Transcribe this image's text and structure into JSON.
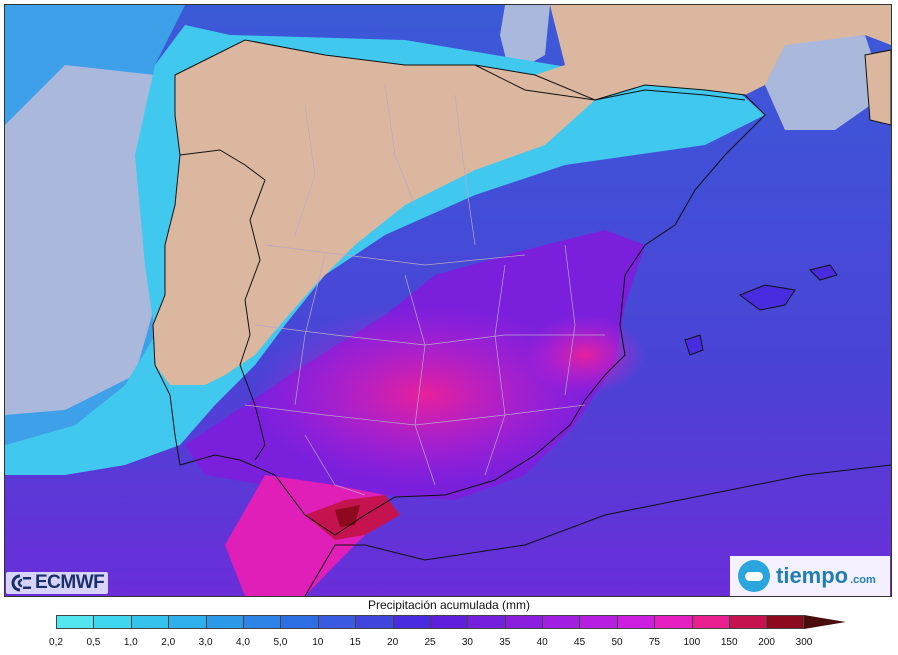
{
  "map": {
    "subject": "Precipitación acumulada sobre la Península Ibérica",
    "colors": {
      "sea_dry": "#aab8dc",
      "land_dry": "#dcb7a0",
      "border": "#111111",
      "province": "#b8a6c8"
    }
  },
  "branding": {
    "left_logo": "ECMWF",
    "right_logo": "tiempo",
    "right_logo_domain": ".com"
  },
  "legend": {
    "title": "Precipitación acumulada (mm)",
    "ticks": [
      "0,2",
      "0,5",
      "1,0",
      "2,0",
      "3,0",
      "4,0",
      "5,0",
      "10",
      "15",
      "20",
      "25",
      "30",
      "35",
      "40",
      "45",
      "50",
      "75",
      "100",
      "150",
      "200",
      "300"
    ],
    "colors": [
      "#53e6f0",
      "#3fd6ef",
      "#35c3ee",
      "#2fb0ec",
      "#2c9ae9",
      "#2d84e6",
      "#2d6ee3",
      "#3a5ae2",
      "#3f45dd",
      "#4a2ce0",
      "#5f20dd",
      "#7420dd",
      "#8a1fde",
      "#a01fe0",
      "#b61fe0",
      "#cc1fe0",
      "#e61fc2",
      "#e91f8f",
      "#c4134e",
      "#8d0a1e"
    ],
    "arrow_color": "#4a0d0d"
  }
}
